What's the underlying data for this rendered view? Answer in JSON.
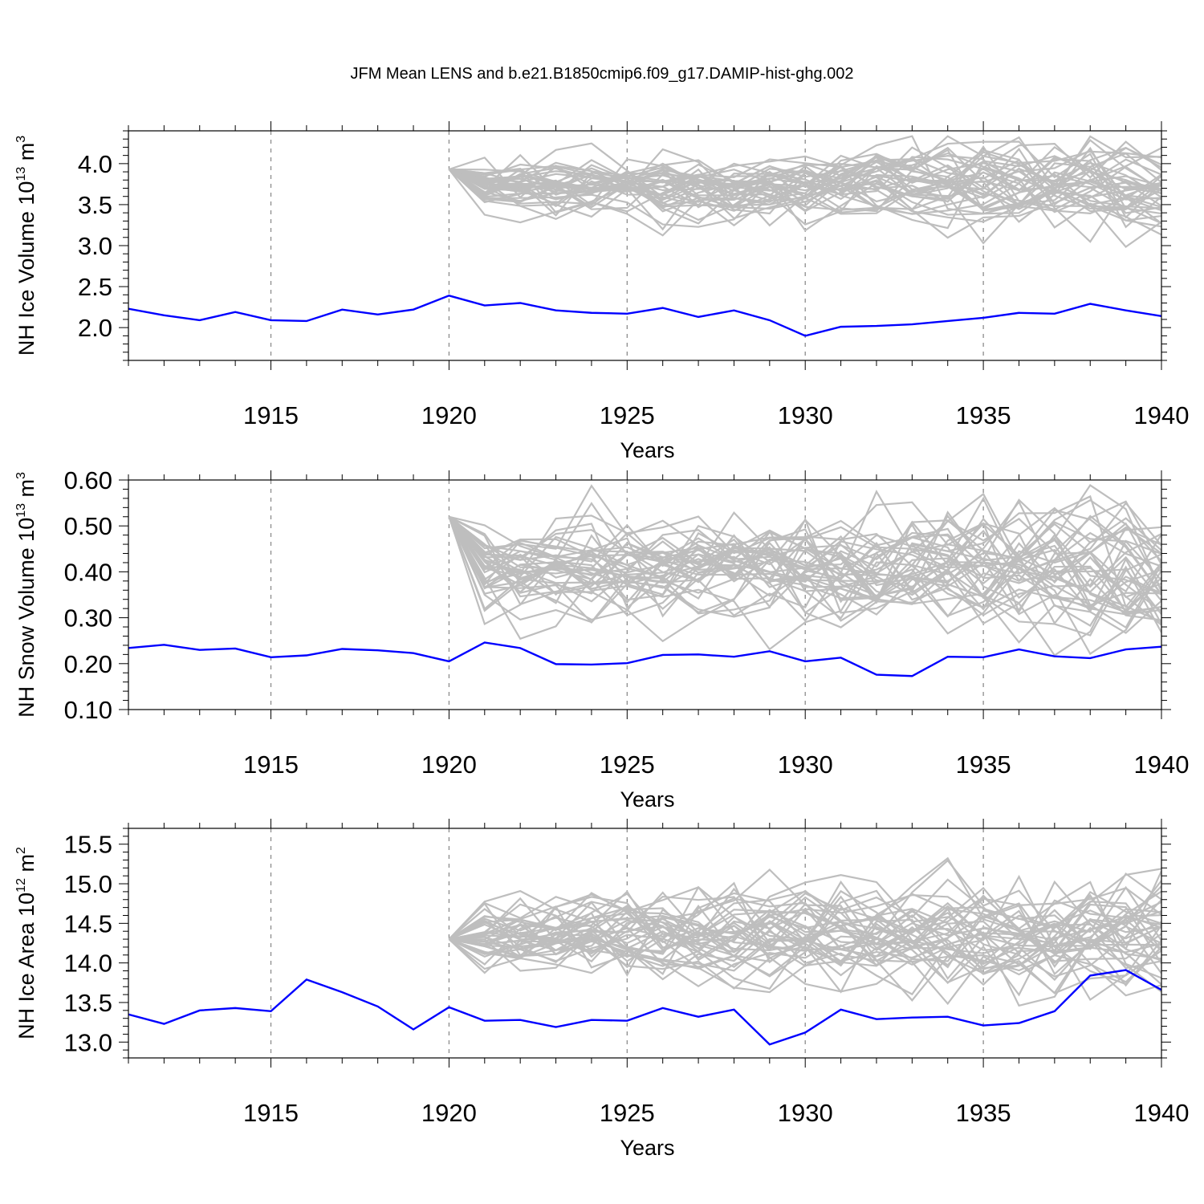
{
  "title": "JFM Mean LENS and b.e21.B1850cmip6.f09_g17.DAMIP-hist-ghg.002",
  "colors": {
    "ensemble": "#bebebe",
    "experiment": "#0000ff",
    "axis": "#000000",
    "refline": "#8c8c8c"
  },
  "chart_data": [
    {
      "type": "line",
      "title": "",
      "xlabel": "Years",
      "ylabel_main": "NH Ice Volume 10",
      "ylabel_exp": "13",
      "ylabel_unit": " m",
      "ylabel_unit_exp": "3",
      "xlim": [
        1911,
        1940
      ],
      "ylim": [
        1.6,
        4.4
      ],
      "xticks": [
        1915,
        1920,
        1925,
        1930,
        1935,
        1940
      ],
      "xtick_labels": [
        "1915",
        "1920",
        "1925",
        "1930",
        "1935",
        "1940"
      ],
      "yticks": [
        2.0,
        2.5,
        3.0,
        3.5,
        4.0
      ],
      "ytick_labels": [
        "2.0",
        "2.5",
        "3.0",
        "3.5",
        "4.0"
      ],
      "yminor": 0.1,
      "refx": [
        1915,
        1920,
        1925,
        1930,
        1935
      ],
      "grid": false,
      "ensemble": {
        "start": 1920,
        "value": 3.93,
        "center": 3.72,
        "spread": 0.13,
        "spread_growth": 0.006,
        "members": 40,
        "seed": 17
      },
      "series": [
        {
          "x": [
            1911,
            1912,
            1913,
            1914,
            1915,
            1916,
            1917,
            1918,
            1919,
            1920,
            1921,
            1922,
            1923,
            1924,
            1925,
            1926,
            1927,
            1928,
            1929,
            1930,
            1931,
            1932,
            1933,
            1934,
            1935,
            1936,
            1937,
            1938,
            1939,
            1940
          ],
          "values": [
            2.23,
            2.15,
            2.09,
            2.19,
            2.09,
            2.08,
            2.22,
            2.16,
            2.22,
            2.39,
            2.27,
            2.3,
            2.21,
            2.18,
            2.17,
            2.24,
            2.13,
            2.21,
            2.09,
            1.9,
            2.01,
            2.02,
            2.04,
            2.08,
            2.12,
            2.18,
            2.17,
            2.29,
            2.21,
            2.14
          ]
        }
      ]
    },
    {
      "type": "line",
      "title": "",
      "xlabel": "Years",
      "ylabel_main": "NH Snow Volume 10",
      "ylabel_exp": "13",
      "ylabel_unit": " m",
      "ylabel_unit_exp": "3",
      "xlim": [
        1911,
        1940
      ],
      "ylim": [
        0.1,
        0.6
      ],
      "xticks": [
        1915,
        1920,
        1925,
        1930,
        1935,
        1940
      ],
      "xtick_labels": [
        "1915",
        "1920",
        "1925",
        "1930",
        "1935",
        "1940"
      ],
      "yticks": [
        0.1,
        0.2,
        0.3,
        0.4,
        0.5,
        0.6
      ],
      "ytick_labels": [
        "0.10",
        "0.20",
        "0.30",
        "0.40",
        "0.50",
        "0.60"
      ],
      "yminor": 0.02,
      "refx": [
        1915,
        1920,
        1925,
        1930,
        1935
      ],
      "grid": false,
      "ensemble": {
        "start": 1920,
        "value": 0.52,
        "center": 0.4,
        "spread": 0.045,
        "spread_growth": 0.0008,
        "members": 40,
        "seed": 29
      },
      "series": [
        {
          "x": [
            1911,
            1912,
            1913,
            1914,
            1915,
            1916,
            1917,
            1918,
            1919,
            1920,
            1921,
            1922,
            1923,
            1924,
            1925,
            1926,
            1927,
            1928,
            1929,
            1930,
            1931,
            1932,
            1933,
            1934,
            1935,
            1936,
            1937,
            1938,
            1939,
            1940
          ],
          "values": [
            0.234,
            0.241,
            0.23,
            0.233,
            0.214,
            0.218,
            0.232,
            0.229,
            0.223,
            0.205,
            0.246,
            0.234,
            0.199,
            0.198,
            0.201,
            0.219,
            0.22,
            0.215,
            0.227,
            0.205,
            0.213,
            0.176,
            0.173,
            0.215,
            0.214,
            0.231,
            0.216,
            0.212,
            0.231,
            0.237
          ]
        }
      ]
    },
    {
      "type": "line",
      "title": "",
      "xlabel": "Years",
      "ylabel_main": "NH Ice Area 10",
      "ylabel_exp": "12",
      "ylabel_unit": " m",
      "ylabel_unit_exp": "2",
      "xlim": [
        1911,
        1940
      ],
      "ylim": [
        12.8,
        15.7
      ],
      "xticks": [
        1915,
        1920,
        1925,
        1930,
        1935,
        1940
      ],
      "xtick_labels": [
        "1915",
        "1920",
        "1925",
        "1930",
        "1935",
        "1940"
      ],
      "yticks": [
        13.0,
        13.5,
        14.0,
        14.5,
        15.0,
        15.5
      ],
      "ytick_labels": [
        "13.0",
        "13.5",
        "14.0",
        "14.5",
        "15.0",
        "15.5"
      ],
      "yminor": 0.1,
      "refx": [
        1915,
        1920,
        1925,
        1930,
        1935
      ],
      "grid": false,
      "ensemble": {
        "start": 1920,
        "value": 14.3,
        "center": 14.35,
        "spread": 0.22,
        "spread_growth": 0.006,
        "members": 40,
        "seed": 41
      },
      "series": [
        {
          "x": [
            1911,
            1912,
            1913,
            1914,
            1915,
            1916,
            1917,
            1918,
            1919,
            1920,
            1921,
            1922,
            1923,
            1924,
            1925,
            1926,
            1927,
            1928,
            1929,
            1930,
            1931,
            1932,
            1933,
            1934,
            1935,
            1936,
            1937,
            1938,
            1939,
            1940
          ],
          "values": [
            13.35,
            13.23,
            13.4,
            13.43,
            13.39,
            13.79,
            13.63,
            13.45,
            13.16,
            13.44,
            13.27,
            13.28,
            13.19,
            13.28,
            13.27,
            13.43,
            13.32,
            13.41,
            12.97,
            13.12,
            13.41,
            13.29,
            13.31,
            13.32,
            13.21,
            13.24,
            13.39,
            13.84,
            13.91,
            13.66
          ]
        }
      ]
    }
  ]
}
